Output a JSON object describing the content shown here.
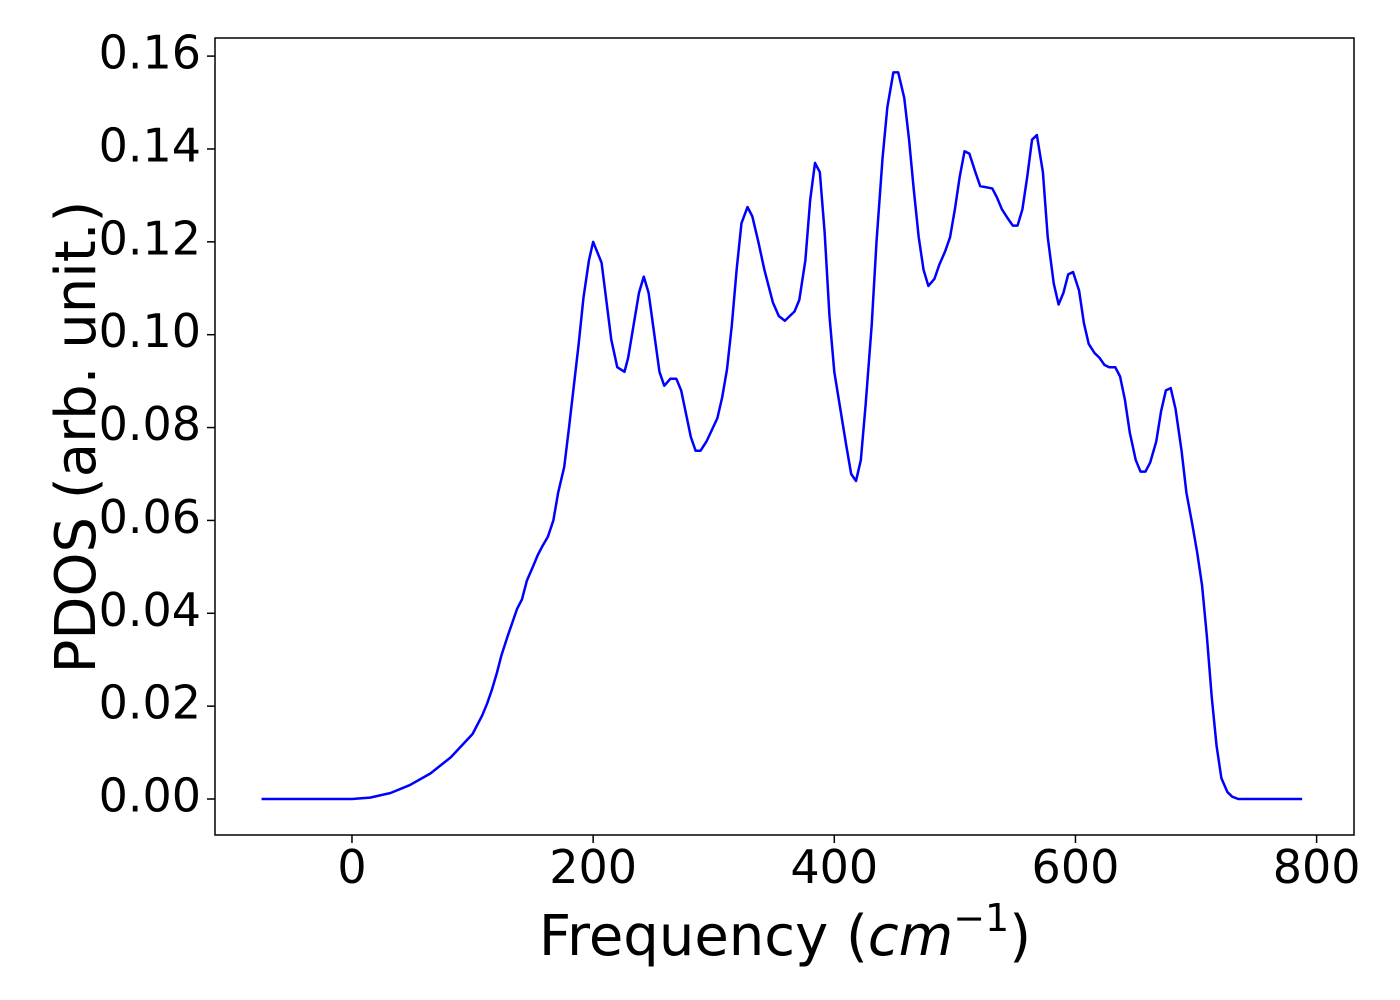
{
  "chart_data": {
    "type": "line",
    "y_label": "PDOS (arb. unit.)",
    "x_label": {
      "text": "Frequency (",
      "math": "cm",
      "superscript": "−1",
      "close": ")"
    },
    "color": "#0000ff",
    "xlim": [
      -113.6,
      831
    ],
    "ylim": [
      -0.00775,
      0.1639
    ],
    "xticks": [
      0,
      200,
      400,
      600,
      800
    ],
    "yticks": [
      {
        "value": 0,
        "label": "0.00"
      },
      0.02,
      0.04,
      0.06,
      0.08,
      {
        "value": 0.1,
        "label": "0.10"
      },
      0.12,
      0.14,
      0.16
    ],
    "x": [
      -75,
      0,
      15,
      32,
      48,
      65,
      82,
      100,
      108,
      112,
      116,
      120,
      124,
      129,
      133,
      137,
      141,
      145,
      150,
      154,
      158,
      162.5,
      167,
      171,
      176,
      180,
      184,
      188,
      192,
      196.5,
      200,
      207,
      215,
      220,
      226,
      229,
      238,
      242,
      246,
      255,
      259,
      264,
      269,
      273,
      281,
      285,
      289,
      294,
      303,
      307,
      311,
      315,
      319,
      323,
      328,
      332,
      337,
      342,
      349,
      354,
      359,
      363,
      367,
      371,
      376,
      380,
      384,
      388,
      392,
      396,
      400,
      405,
      410,
      414,
      418,
      422,
      426,
      431,
      435,
      440,
      444,
      449,
      453,
      458,
      462,
      466,
      470,
      474,
      478,
      483,
      487,
      492,
      496,
      500,
      504,
      508,
      512,
      517,
      521,
      531,
      535,
      539,
      544,
      548,
      552,
      556,
      560,
      564,
      568,
      573,
      577,
      582,
      586,
      590,
      594,
      598,
      603,
      607,
      611,
      616,
      620,
      624,
      628,
      633,
      637,
      641,
      645,
      650,
      654,
      658,
      662,
      667,
      671,
      675,
      679,
      683,
      688,
      692,
      697,
      701,
      705,
      709,
      713,
      717,
      721,
      726,
      730,
      735,
      788
    ],
    "values": [
      0,
      0,
      0.0003,
      0.0013,
      0.003,
      0.0055,
      0.009,
      0.014,
      0.018,
      0.0205,
      0.0235,
      0.027,
      0.031,
      0.035,
      0.038,
      0.041,
      0.043,
      0.047,
      0.05,
      0.0525,
      0.0545,
      0.0565,
      0.06,
      0.066,
      0.0715,
      0.08,
      0.089,
      0.098,
      0.108,
      0.116,
      0.12,
      0.1155,
      0.099,
      0.093,
      0.092,
      0.095,
      0.109,
      0.1125,
      0.109,
      0.092,
      0.089,
      0.0905,
      0.0905,
      0.088,
      0.078,
      0.075,
      0.075,
      0.077,
      0.082,
      0.0865,
      0.0925,
      0.102,
      0.114,
      0.124,
      0.1275,
      0.1255,
      0.12,
      0.114,
      0.107,
      0.104,
      0.103,
      0.104,
      0.105,
      0.1075,
      0.116,
      0.129,
      0.137,
      0.135,
      0.122,
      0.104,
      0.092,
      0.084,
      0.076,
      0.07,
      0.0685,
      0.073,
      0.085,
      0.102,
      0.12,
      0.138,
      0.149,
      0.1565,
      0.1565,
      0.151,
      0.142,
      0.131,
      0.121,
      0.114,
      0.1105,
      0.112,
      0.115,
      0.118,
      0.121,
      0.127,
      0.134,
      0.1395,
      0.139,
      0.135,
      0.132,
      0.1315,
      0.1295,
      0.127,
      0.125,
      0.1235,
      0.1235,
      0.127,
      0.134,
      0.142,
      0.143,
      0.135,
      0.121,
      0.111,
      0.1065,
      0.109,
      0.113,
      0.1135,
      0.1095,
      0.1025,
      0.098,
      0.096,
      0.095,
      0.0935,
      0.093,
      0.093,
      0.091,
      0.086,
      0.079,
      0.073,
      0.0705,
      0.0705,
      0.0725,
      0.077,
      0.0835,
      0.088,
      0.0885,
      0.084,
      0.075,
      0.066,
      0.059,
      0.053,
      0.046,
      0.035,
      0.022,
      0.0115,
      0.0045,
      0.0015,
      0.0005,
      0,
      0
    ]
  }
}
